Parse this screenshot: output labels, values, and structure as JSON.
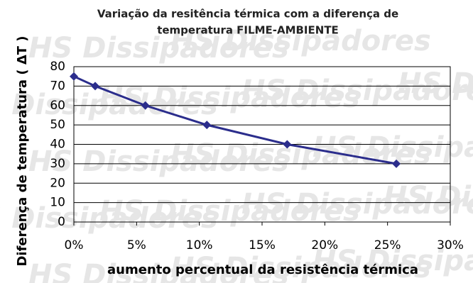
{
  "chart_data": {
    "type": "line",
    "title": "Variação da resitência térmica com a diferença de",
    "subtitle": "temperatura FILME-AMBIENTE",
    "watermark": "HS Dissipadores",
    "x_label": "aumento percentual da resistência térmica",
    "y_label": "Diferença de temperatura ( ΔT )",
    "x": [
      0,
      1.7,
      5.7,
      10.6,
      17.0,
      25.7
    ],
    "series": [
      {
        "color": "#2b2d8c",
        "values": [
          75,
          70,
          60,
          50,
          40,
          30
        ]
      }
    ],
    "xlim": [
      0,
      30
    ],
    "xticks": [
      {
        "value": 0,
        "label": "0%"
      },
      {
        "value": 5,
        "label": "5%"
      },
      {
        "value": 10,
        "label": "10%"
      },
      {
        "value": 15,
        "label": "15%"
      },
      {
        "value": 20,
        "label": "20%"
      },
      {
        "value": 25,
        "label": "25%"
      },
      {
        "value": 30,
        "label": "30%"
      }
    ],
    "ylim": [
      0,
      80
    ],
    "yticks": [
      0,
      10,
      20,
      30,
      40,
      50,
      60,
      70,
      80
    ],
    "grid": true
  }
}
